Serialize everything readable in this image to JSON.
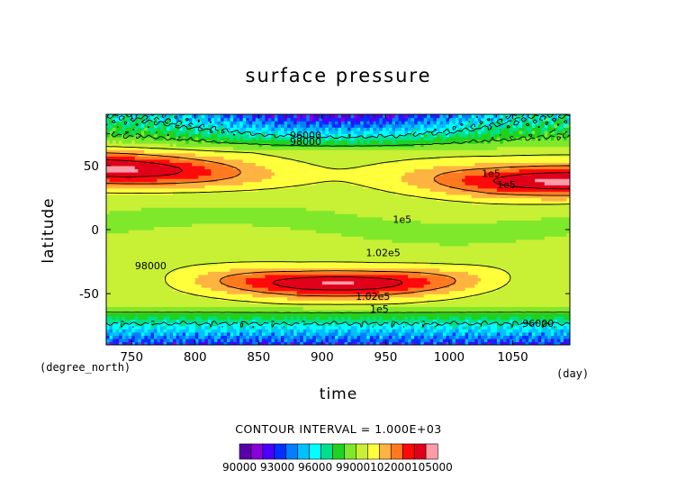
{
  "chart_data": {
    "type": "heatmap",
    "title": "surface pressure",
    "xlabel": "time",
    "ylabel": "latitude",
    "x_unit": "(day)",
    "y_unit": "(degree_north)",
    "xlim": [
      730,
      1095
    ],
    "ylim": [
      -90,
      90
    ],
    "x_ticks": [
      750,
      800,
      850,
      900,
      950,
      1000,
      1050
    ],
    "y_ticks": [
      50,
      0,
      -50
    ],
    "contour_interval_text": "CONTOUR INTERVAL = 1.000E+03",
    "contour_labels": [
      "96000",
      "98000",
      "1e5",
      "1e5",
      "98000",
      "1.02e5",
      "1.02e5",
      "1e5",
      "96000",
      "1e5"
    ],
    "colorbar": {
      "levels": [
        90000,
        91000,
        92000,
        93000,
        94000,
        95000,
        96000,
        97000,
        98000,
        99000,
        100000,
        101000,
        102000,
        103000,
        104000,
        105000
      ],
      "tick_text": "90000 93000 96000 99000102000105000",
      "colors": [
        "#5a00a8",
        "#8a00d8",
        "#4b00ff",
        "#0030ff",
        "#0080ff",
        "#00c0ff",
        "#00ffff",
        "#00e08a",
        "#1fd21f",
        "#7fe82a",
        "#c8f034",
        "#ffff3c",
        "#ffb340",
        "#ff7a1f",
        "#ff0a0a",
        "#e0001a",
        "#ff9aa8"
      ]
    },
    "field_description_values": {
      "ridge_lat": [
        48,
        47,
        46,
        45,
        44,
        43,
        42,
        41,
        40,
        39,
        38,
        38,
        38
      ],
      "trough_lat": [
        -38,
        -38,
        -39,
        -40,
        -41,
        -42,
        -42,
        -42,
        -41,
        -40,
        -38,
        -36,
        -35
      ]
    }
  }
}
